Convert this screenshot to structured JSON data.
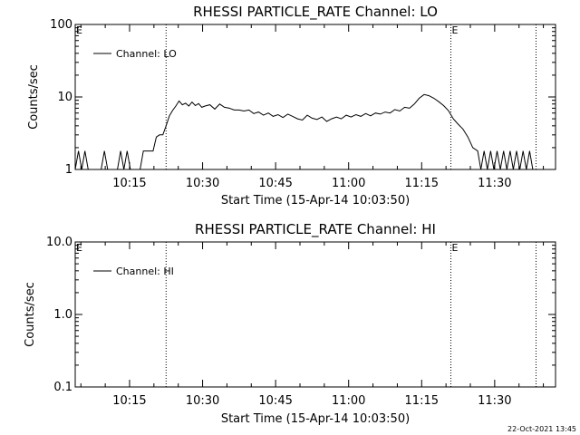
{
  "timestamp": "22-Oct-2021 13:45",
  "chart_data": [
    {
      "type": "line",
      "title": "RHESSI PARTICLE_RATE Channel: LO",
      "xlabel": "Start Time (15-Apr-14 10:03:50)",
      "ylabel": "Counts/sec",
      "yscale": "log",
      "ylim": [
        1,
        100
      ],
      "ytick_labels": [
        "1",
        "10",
        "100"
      ],
      "xlim": [
        "10:03:50",
        "11:42:30"
      ],
      "xtick_labels": [
        "10:15",
        "10:30",
        "10:45",
        "11:00",
        "11:15",
        "11:30"
      ],
      "vlines": [
        "10:22:30",
        "11:21:00",
        "11:38:30"
      ],
      "flags": [
        {
          "text": "E",
          "at": "10:03:50"
        },
        {
          "text": "E",
          "at": "11:21:00"
        }
      ],
      "legend": {
        "placement": "top-left",
        "entries": [
          "Channel: LO"
        ]
      },
      "series": [
        {
          "name": "Channel: LO",
          "x": [
            "10:03:50",
            "10:04:30",
            "10:05:10",
            "10:05:50",
            "10:06:30",
            "10:07:10",
            "10:07:50",
            "10:08:30",
            "10:09:10",
            "10:09:50",
            "10:10:30",
            "10:11:10",
            "10:11:50",
            "10:12:30",
            "10:13:10",
            "10:13:50",
            "10:14:30",
            "10:15:10",
            "10:15:50",
            "10:16:30",
            "10:17:10",
            "10:17:50",
            "10:18:30",
            "10:19:10",
            "10:19:50",
            "10:20:30",
            "10:21:10",
            "10:21:50",
            "10:22:30",
            "10:23:10",
            "10:23:50",
            "10:24:30",
            "10:25:10",
            "10:25:50",
            "10:26:30",
            "10:27:10",
            "10:27:50",
            "10:28:30",
            "10:29:10",
            "10:29:50",
            "10:30:30",
            "10:31:30",
            "10:32:30",
            "10:33:30",
            "10:34:30",
            "10:35:30",
            "10:36:30",
            "10:37:30",
            "10:38:30",
            "10:39:30",
            "10:40:30",
            "10:41:30",
            "10:42:30",
            "10:43:30",
            "10:44:30",
            "10:45:30",
            "10:46:30",
            "10:47:30",
            "10:48:30",
            "10:49:30",
            "10:50:30",
            "10:51:30",
            "10:52:30",
            "10:53:30",
            "10:54:30",
            "10:55:30",
            "10:56:30",
            "10:57:30",
            "10:58:30",
            "10:59:30",
            "11:00:30",
            "11:01:30",
            "11:02:30",
            "11:03:30",
            "11:04:30",
            "11:05:30",
            "11:06:30",
            "11:07:30",
            "11:08:30",
            "11:09:30",
            "11:10:30",
            "11:11:30",
            "11:12:30",
            "11:13:30",
            "11:14:30",
            "11:15:30",
            "11:16:30",
            "11:17:30",
            "11:18:30",
            "11:19:30",
            "11:20:30",
            "11:21:30",
            "11:22:30",
            "11:23:30",
            "11:24:30",
            "11:25:30",
            "11:26:30",
            "11:27:10",
            "11:27:50",
            "11:28:30",
            "11:29:10",
            "11:29:50",
            "11:30:30",
            "11:31:10",
            "11:31:50",
            "11:32:30",
            "11:33:10",
            "11:33:50",
            "11:34:30",
            "11:35:10",
            "11:35:50",
            "11:36:30",
            "11:37:10",
            "11:37:50"
          ],
          "y": [
            1,
            1.8,
            1,
            1.8,
            1,
            1,
            1,
            1,
            1,
            1.8,
            1,
            1,
            1,
            1,
            1.8,
            1,
            1.8,
            1,
            1,
            1,
            1,
            1.8,
            1.8,
            1.8,
            1.8,
            2.8,
            3.0,
            3.0,
            4.0,
            5.5,
            6.5,
            7.5,
            8.8,
            7.8,
            8.2,
            7.5,
            8.5,
            7.6,
            8.1,
            7.2,
            7.5,
            7.8,
            6.8,
            8.0,
            7.2,
            7.0,
            6.6,
            6.6,
            6.4,
            6.6,
            5.9,
            6.2,
            5.6,
            6.0,
            5.4,
            5.7,
            5.2,
            5.8,
            5.4,
            5.0,
            4.8,
            5.6,
            5.1,
            4.9,
            5.3,
            4.6,
            5.0,
            5.3,
            5.0,
            5.6,
            5.3,
            5.7,
            5.4,
            5.9,
            5.5,
            6.0,
            5.8,
            6.2,
            6.0,
            6.7,
            6.4,
            7.2,
            7.0,
            8.0,
            9.6,
            10.8,
            10.4,
            9.6,
            8.6,
            7.6,
            6.5,
            5.0,
            4.2,
            3.6,
            2.8,
            2.0,
            1.8,
            1.0,
            1.8,
            1,
            1.8,
            1,
            1.8,
            1,
            1.8,
            1,
            1.8,
            1,
            1.8,
            1,
            1.8,
            1,
            1.8,
            1
          ]
        }
      ]
    },
    {
      "type": "line",
      "title": "RHESSI PARTICLE_RATE Channel: HI",
      "xlabel": "Start Time (15-Apr-14 10:03:50)",
      "ylabel": "Counts/sec",
      "yscale": "log",
      "ylim": [
        0.1,
        10
      ],
      "ytick_labels": [
        "0.1",
        "1.0",
        "10.0"
      ],
      "xlim": [
        "10:03:50",
        "11:42:30"
      ],
      "xtick_labels": [
        "10:15",
        "10:30",
        "10:45",
        "11:00",
        "11:15",
        "11:30"
      ],
      "vlines": [
        "10:22:30",
        "11:21:00",
        "11:38:30"
      ],
      "flags": [
        {
          "text": "E",
          "at": "10:03:50"
        },
        {
          "text": "E",
          "at": "11:21:00"
        }
      ],
      "legend": {
        "placement": "top-left",
        "entries": [
          "Channel: HI"
        ]
      },
      "series": [
        {
          "name": "Channel: HI",
          "x": [],
          "y": []
        }
      ]
    }
  ]
}
